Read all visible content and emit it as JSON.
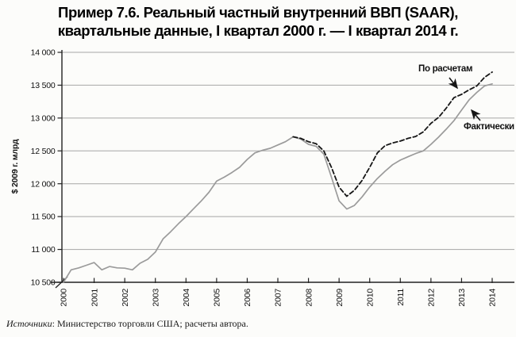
{
  "title": {
    "line1": "Пример 7.6. Реальный частный внутренний ВВП (SAAR),",
    "line2": "квартальные данные, I квартал 2000 г. — I квартал 2014 г."
  },
  "source": {
    "prefix_italic": "Источники",
    "rest": ": Министерство торговли США; расчеты автора."
  },
  "colors": {
    "background": "#fcfcfa",
    "grid": "#a6a6a6",
    "axis": "#222222",
    "actual_line": "#9b9b9b",
    "calculated_line": "#161616",
    "text": "#111111"
  },
  "chart_data": {
    "type": "line",
    "title": "Пример 7.6. Реальный частный внутренний ВВП (SAAR), квартальные данные, I квартал 2000 г. — I квартал 2014 г.",
    "xlabel": "",
    "ylabel": "$ 2009 г. млрд",
    "frequency": "quarterly",
    "grid": "horizontal",
    "legend_position": "inline-annotations",
    "y_axis": {
      "min": 10500,
      "max": 14000,
      "step": 500,
      "tick_labels": [
        "10 500",
        "11 000",
        "11 500",
        "12 000",
        "12 500",
        "13 000",
        "13 500",
        "14 000"
      ],
      "tick_values": [
        10500,
        11000,
        11500,
        12000,
        12500,
        13000,
        13500,
        14000
      ],
      "axis_break_at_origin": true
    },
    "x_axis": {
      "tick_labels": [
        "2000",
        "2001",
        "2002",
        "2003",
        "2004",
        "2005",
        "2006",
        "2007",
        "2008",
        "2009",
        "2010",
        "2011",
        "2012",
        "2013",
        "2014"
      ],
      "quarters_per_tick": 4,
      "total_quarters": 57
    },
    "series": [
      {
        "name": "Фактически",
        "style": "solid",
        "color": "#9b9b9b",
        "start_index": 0,
        "values": [
          10500,
          10690,
          10720,
          10760,
          10800,
          10690,
          10740,
          10720,
          10715,
          10690,
          10790,
          10850,
          10960,
          11160,
          11270,
          11390,
          11500,
          11620,
          11740,
          11870,
          12040,
          12100,
          12170,
          12250,
          12370,
          12470,
          12510,
          12540,
          12590,
          12640,
          12715,
          12680,
          12600,
          12570,
          12450,
          12100,
          11740,
          11615,
          11670,
          11800,
          11950,
          12080,
          12190,
          12290,
          12360,
          12410,
          12460,
          12500,
          12600,
          12710,
          12830,
          12960,
          13120,
          13280,
          13390,
          13490,
          13520
        ]
      },
      {
        "name": "По расчетам",
        "style": "dashed",
        "color": "#161616",
        "start_index": 30,
        "values": [
          12715,
          12690,
          12640,
          12610,
          12500,
          12250,
          11950,
          11810,
          11900,
          12050,
          12250,
          12470,
          12580,
          12620,
          12650,
          12690,
          12720,
          12790,
          12920,
          13010,
          13150,
          13310,
          13360,
          13430,
          13490,
          13620,
          13700
        ]
      }
    ],
    "annotations": [
      {
        "text": "По расчетам",
        "points_to": "dashed-series"
      },
      {
        "text": "Фактически",
        "points_to": "solid-series"
      }
    ]
  }
}
